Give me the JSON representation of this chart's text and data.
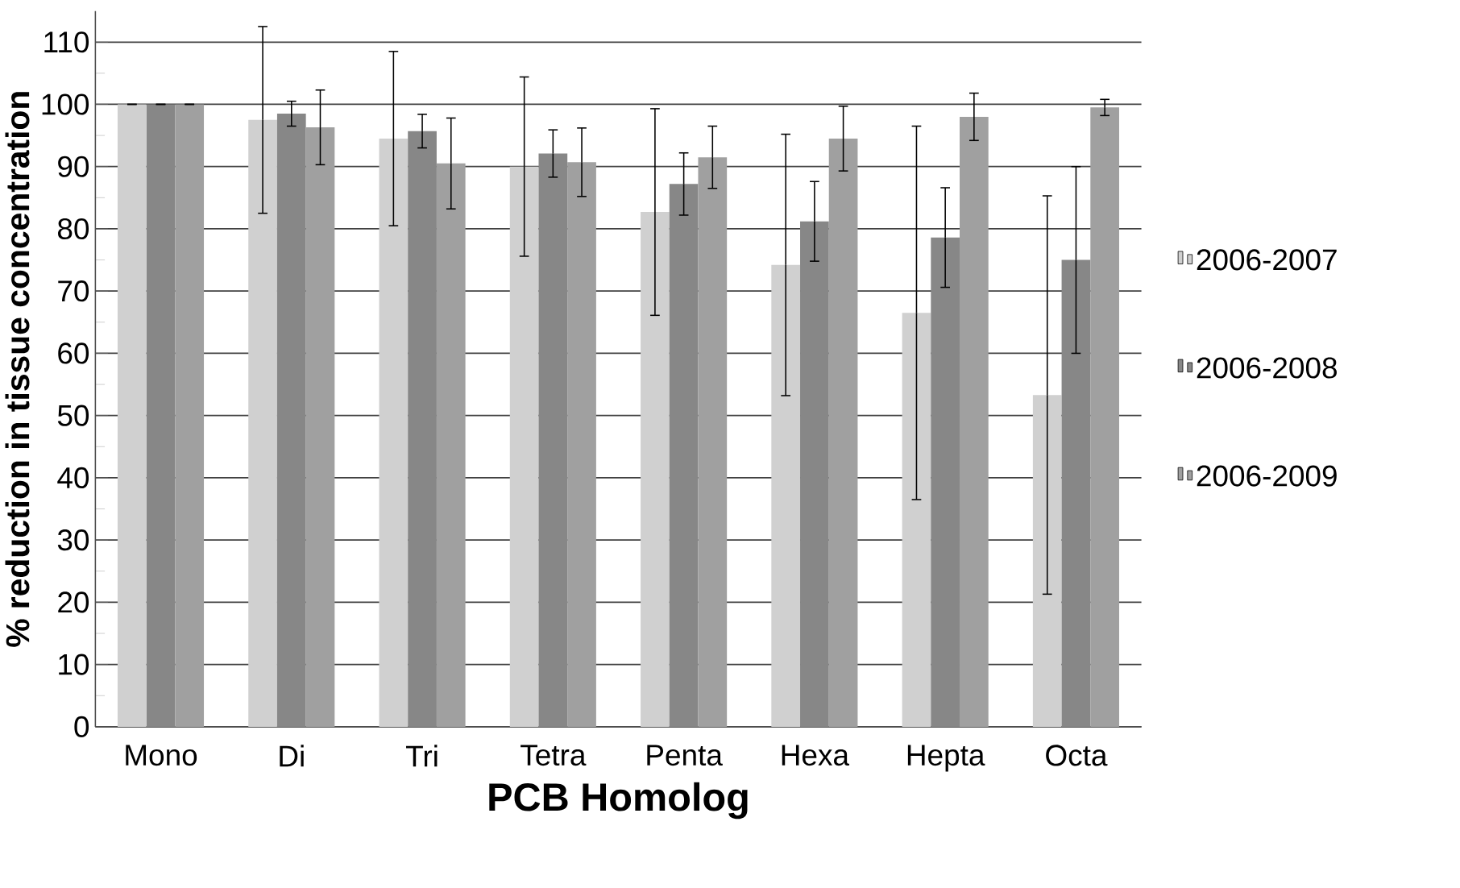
{
  "chart_data": {
    "type": "bar",
    "xlabel": "PCB Homolog",
    "ylabel": "% reduction in tissue concentration",
    "categories": [
      "Mono",
      "Di",
      "Tri",
      "Tetra",
      "Penta",
      "Hexa",
      "Hepta",
      "Octa"
    ],
    "ylim": [
      0,
      115
    ],
    "yticks": [
      0,
      10,
      20,
      30,
      40,
      50,
      60,
      70,
      80,
      90,
      100,
      110
    ],
    "grid": "y",
    "legend": "right",
    "series": [
      {
        "name": "2006-2007",
        "color": "#d0d0d0",
        "values": [
          100,
          97.5,
          94.5,
          90,
          82.7,
          74.2,
          66.5,
          53.3
        ],
        "errors": [
          null,
          15,
          14,
          14.4,
          16.6,
          21,
          30,
          32
        ]
      },
      {
        "name": "2006-2008",
        "color": "#878787",
        "values": [
          100,
          98.5,
          95.7,
          92.1,
          87.2,
          81.2,
          78.6,
          75
        ],
        "errors": [
          null,
          2,
          2.7,
          3.8,
          5,
          6.4,
          8,
          15
        ]
      },
      {
        "name": "2006-2009",
        "color": "#a0a0a0",
        "values": [
          100,
          96.3,
          90.5,
          90.7,
          91.5,
          94.5,
          98,
          99.5
        ],
        "errors": [
          null,
          6,
          7.3,
          5.5,
          5,
          5.2,
          3.8,
          1.3
        ]
      }
    ]
  }
}
